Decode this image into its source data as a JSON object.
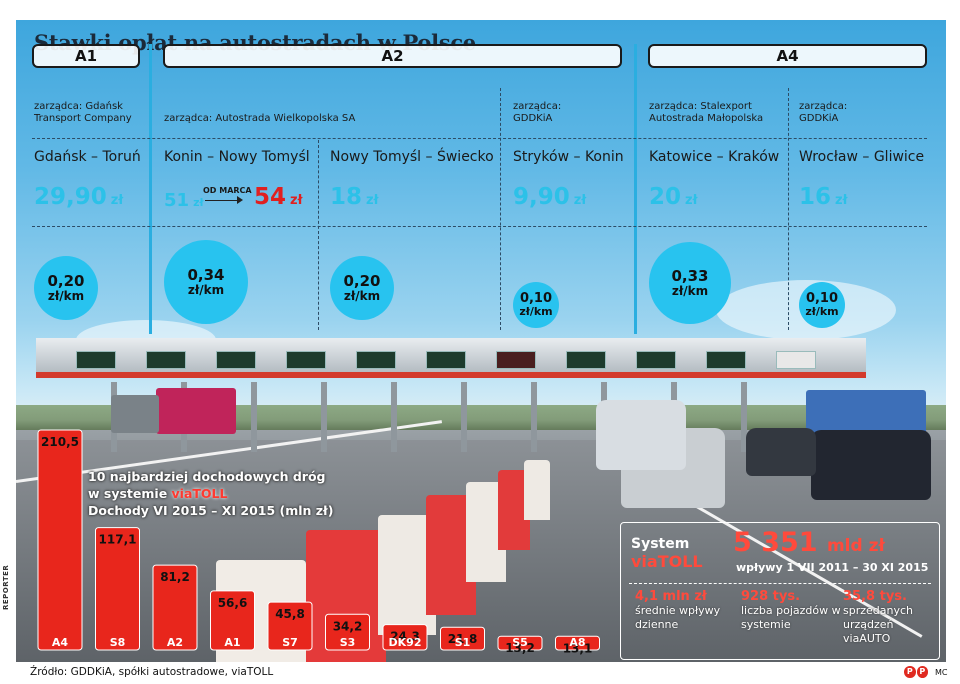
{
  "title": "Stawki opłat na autostradach w Polsce",
  "highways": [
    {
      "label": "A1"
    },
    {
      "label": "A2"
    },
    {
      "label": "A4"
    }
  ],
  "sections": [
    {
      "manager": "zarządca: Gdańsk Transport Company",
      "route": "Gdańsk – Toruń",
      "price": "29,90",
      "currency": "zł",
      "rate_value": "0,20",
      "rate_unit": "zł/km"
    },
    {
      "manager": "zarządca: Autostrada Wielkopolska SA",
      "route": "Konin – Nowy Tomyśl",
      "price": "51",
      "currency": "zł",
      "since_label": "OD MARCA",
      "new_price": "54",
      "rate_value": "0,34",
      "rate_unit": "zł/km"
    },
    {
      "manager": "",
      "route": "Nowy Tomyśl – Świecko",
      "price": "18",
      "currency": "zł",
      "rate_value": "0,20",
      "rate_unit": "zł/km"
    },
    {
      "manager": "zarządca: GDDKiA",
      "route": "Stryków – Konin",
      "price": "9,90",
      "currency": "zł",
      "rate_value": "0,10",
      "rate_unit": "zł/km"
    },
    {
      "manager": "zarządca: Stalexport Autostrada Małopolska",
      "route": "Katowice – Kraków",
      "price": "20",
      "currency": "zł",
      "rate_value": "0,33",
      "rate_unit": "zł/km"
    },
    {
      "manager": "zarządca: GDDKiA",
      "route": "Wrocław – Gliwice",
      "price": "16",
      "currency": "zł",
      "rate_value": "0,10",
      "rate_unit": "zł/km"
    }
  ],
  "chart_data": {
    "type": "bar",
    "title_lines": [
      "10 najbardziej dochodowych dróg",
      "w systemie",
      "viaTOLL",
      "Dochody VI 2015 – XI 2015 (mln zł)"
    ],
    "categories": [
      "A4",
      "S8",
      "A2",
      "A1",
      "S7",
      "S3",
      "DK92",
      "S1",
      "S5",
      "A8"
    ],
    "values": [
      210.5,
      117.1,
      81.2,
      56.6,
      45.8,
      34.2,
      24.3,
      21.8,
      13.2,
      13.1
    ],
    "value_labels": [
      "210,5",
      "117,1",
      "81,2",
      "56,6",
      "45,8",
      "34,2",
      "24,3",
      "21,8",
      "13,2",
      "13,1"
    ],
    "bar_color": "#e8261c",
    "ylim": [
      0,
      210.5
    ]
  },
  "stats": {
    "system_label": "System",
    "system_brand": "viaTOLL",
    "total_value": "5 351",
    "total_unit": "mld zł",
    "total_caption": "wpływy 1 VII 2011 – 30 XI 2015",
    "items": [
      {
        "value": "4,1 mln zł",
        "label": "średnie wpływy dzienne"
      },
      {
        "value": "928 tys.",
        "label": "liczba pojazdów w systemie"
      },
      {
        "value": "35,8 tys.",
        "label": "sprzedanych urządzeń viaAUTO"
      }
    ]
  },
  "footer": {
    "source": "Źródło: GDDKiA, spółki autostradowe, viaTOLL",
    "photo_credit": "REPORTER",
    "agency_logo": "PAP",
    "author": "MC"
  },
  "colors": {
    "accent_blue": "#28c3ef",
    "accent_red": "#e02020",
    "sky": "#4fb3e3"
  }
}
